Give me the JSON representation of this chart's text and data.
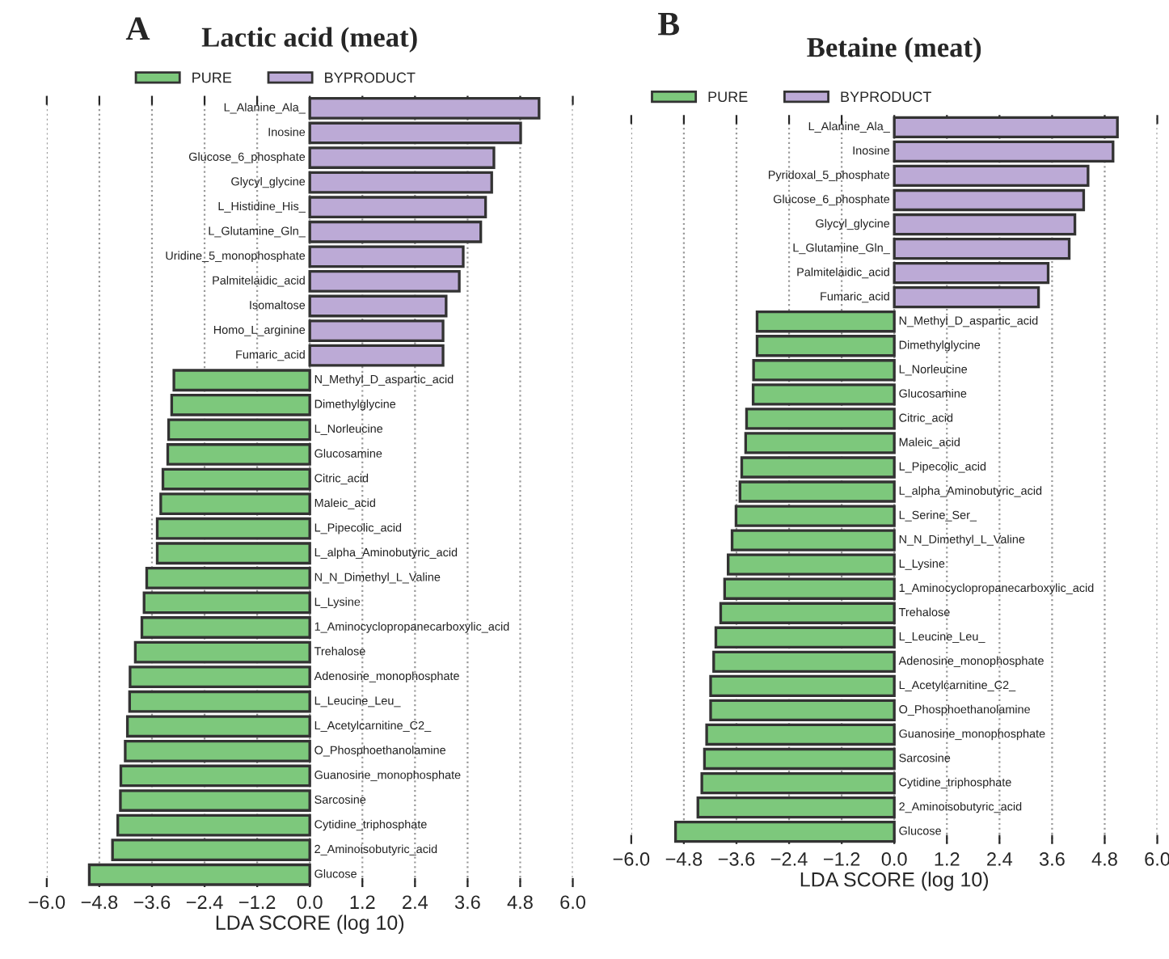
{
  "chart_data": [
    {
      "type": "bar",
      "orientation": "horizontal",
      "title": "Lactic acid (meat)",
      "annotations": [
        "A"
      ],
      "xlabel": "LDA SCORE (log 10)",
      "categories": [
        "L_Alanine_Ala_",
        "Inosine",
        "Glucose_6_phosphate",
        "Glycyl_glycine",
        "L_Histidine_His_",
        "L_Glutamine_Gln_",
        "Uridine_5_monophosphate",
        "Palmitelaidic_acid",
        "Isomaltose",
        "Homo_L_arginine",
        "Fumaric_acid",
        "N_Methyl_D_aspartic_acid",
        "Dimethylglycine",
        "L_Norleucine",
        "Glucosamine",
        "Citric_acid",
        "Maleic_acid",
        "L_Pipecolic_acid",
        "L_alpha_Aminobutyric_acid",
        "N_N_Dimethyl_L_Valine",
        "L_Lysine",
        "1_Aminocyclopropanecarboxylic_acid",
        "Trehalose",
        "Adenosine_monophosphate",
        "L_Leucine_Leu_",
        "L_Acetylcarnitine_C2_",
        "O_Phosphoethanolamine",
        "Guanosine_monophosphate",
        "Sarcosine",
        "Cytidine_triphosphate",
        "2_Aminoisobutyric_acid",
        "Glucose"
      ],
      "series": [
        {
          "name": "PURE",
          "color": "#7dc87c",
          "values": [
            null,
            null,
            null,
            null,
            null,
            null,
            null,
            null,
            null,
            null,
            null,
            -3.1,
            -3.15,
            -3.22,
            -3.24,
            -3.35,
            -3.4,
            -3.48,
            -3.48,
            -3.72,
            -3.78,
            -3.83,
            -3.98,
            -4.1,
            -4.11,
            -4.16,
            -4.21,
            -4.31,
            -4.32,
            -4.38,
            -4.5,
            -5.03
          ]
        },
        {
          "name": "BYPRODUCT",
          "color": "#bcaad6",
          "values": [
            5.23,
            4.81,
            4.2,
            4.15,
            4.01,
            3.9,
            3.5,
            3.41,
            3.11,
            3.04,
            3.04,
            null,
            null,
            null,
            null,
            null,
            null,
            null,
            null,
            null,
            null,
            null,
            null,
            null,
            null,
            null,
            null,
            null,
            null,
            null,
            null,
            null
          ]
        }
      ],
      "xlim": [
        -6,
        6
      ],
      "xticks": [
        {
          "value": -6,
          "label": "−6.0"
        },
        {
          "value": -4.8,
          "label": "−4.8"
        },
        {
          "value": -3.6,
          "label": "−3.6"
        },
        {
          "value": -2.4,
          "label": "−2.4"
        },
        {
          "value": -1.2,
          "label": "−1.2"
        },
        {
          "value": 0,
          "label": "0.0"
        },
        {
          "value": 1.2,
          "label": "1.2"
        },
        {
          "value": 2.4,
          "label": "2.4"
        },
        {
          "value": 3.6,
          "label": "3.6"
        },
        {
          "value": 4.8,
          "label": "4.8"
        },
        {
          "value": 6,
          "label": "6.0"
        }
      ],
      "grid": "x",
      "legend": "top",
      "tick_labels": "x"
    },
    {
      "type": "bar",
      "orientation": "horizontal",
      "title": "Betaine (meat)",
      "annotations": [
        "B"
      ],
      "xlabel": "LDA SCORE (log 10)",
      "categories": [
        "L_Alanine_Ala_",
        "Inosine",
        "Pyridoxal_5_phosphate",
        "Glucose_6_phosphate",
        "Glycyl_glycine",
        "L_Glutamine_Gln_",
        "Palmitelaidic_acid",
        "Fumaric_acid",
        "N_Methyl_D_aspartic_acid",
        "Dimethylglycine",
        "L_Norleucine",
        "Glucosamine",
        "Citric_acid",
        "Maleic_acid",
        "L_Pipecolic_acid",
        "L_alpha_Aminobutyric_acid",
        "L_Serine_Ser_",
        "N_N_Dimethyl_L_Valine",
        "L_Lysine",
        "1_Aminocyclopropanecarboxylic_acid",
        "Trehalose",
        "L_Leucine_Leu_",
        "Adenosine_monophosphate",
        "L_Acetylcarnitine_C2_",
        "O_Phosphoethanolamine",
        "Guanosine_monophosphate",
        "Sarcosine",
        "Cytidine_triphosphate",
        "2_Aminoisobutyric_acid",
        "Glucose"
      ],
      "series": [
        {
          "name": "PURE",
          "color": "#7dc87c",
          "values": [
            null,
            null,
            null,
            null,
            null,
            null,
            null,
            null,
            -3.13,
            -3.13,
            -3.21,
            -3.22,
            -3.37,
            -3.39,
            -3.48,
            -3.52,
            -3.61,
            -3.7,
            -3.79,
            -3.87,
            -3.96,
            -4.07,
            -4.12,
            -4.19,
            -4.19,
            -4.28,
            -4.33,
            -4.39,
            -4.48,
            -4.99
          ]
        },
        {
          "name": "BYPRODUCT",
          "color": "#bcaad6",
          "values": [
            5.09,
            4.99,
            4.42,
            4.32,
            4.12,
            3.99,
            3.51,
            3.29,
            null,
            null,
            null,
            null,
            null,
            null,
            null,
            null,
            null,
            null,
            null,
            null,
            null,
            null,
            null,
            null,
            null,
            null,
            null,
            null,
            null,
            null
          ]
        }
      ],
      "xlim": [
        -6,
        6
      ],
      "xticks": [
        {
          "value": -6,
          "label": "−6.0"
        },
        {
          "value": -4.8,
          "label": "−4.8"
        },
        {
          "value": -3.6,
          "label": "−3.6"
        },
        {
          "value": -2.4,
          "label": "−2.4"
        },
        {
          "value": -1.2,
          "label": "−1.2"
        },
        {
          "value": 0,
          "label": "0.0"
        },
        {
          "value": 1.2,
          "label": "1.2"
        },
        {
          "value": 2.4,
          "label": "2.4"
        },
        {
          "value": 3.6,
          "label": "3.6"
        },
        {
          "value": 4.8,
          "label": "4.8"
        },
        {
          "value": 6,
          "label": "6.0"
        }
      ],
      "grid": "x",
      "legend": "top",
      "tick_labels": "x"
    }
  ]
}
